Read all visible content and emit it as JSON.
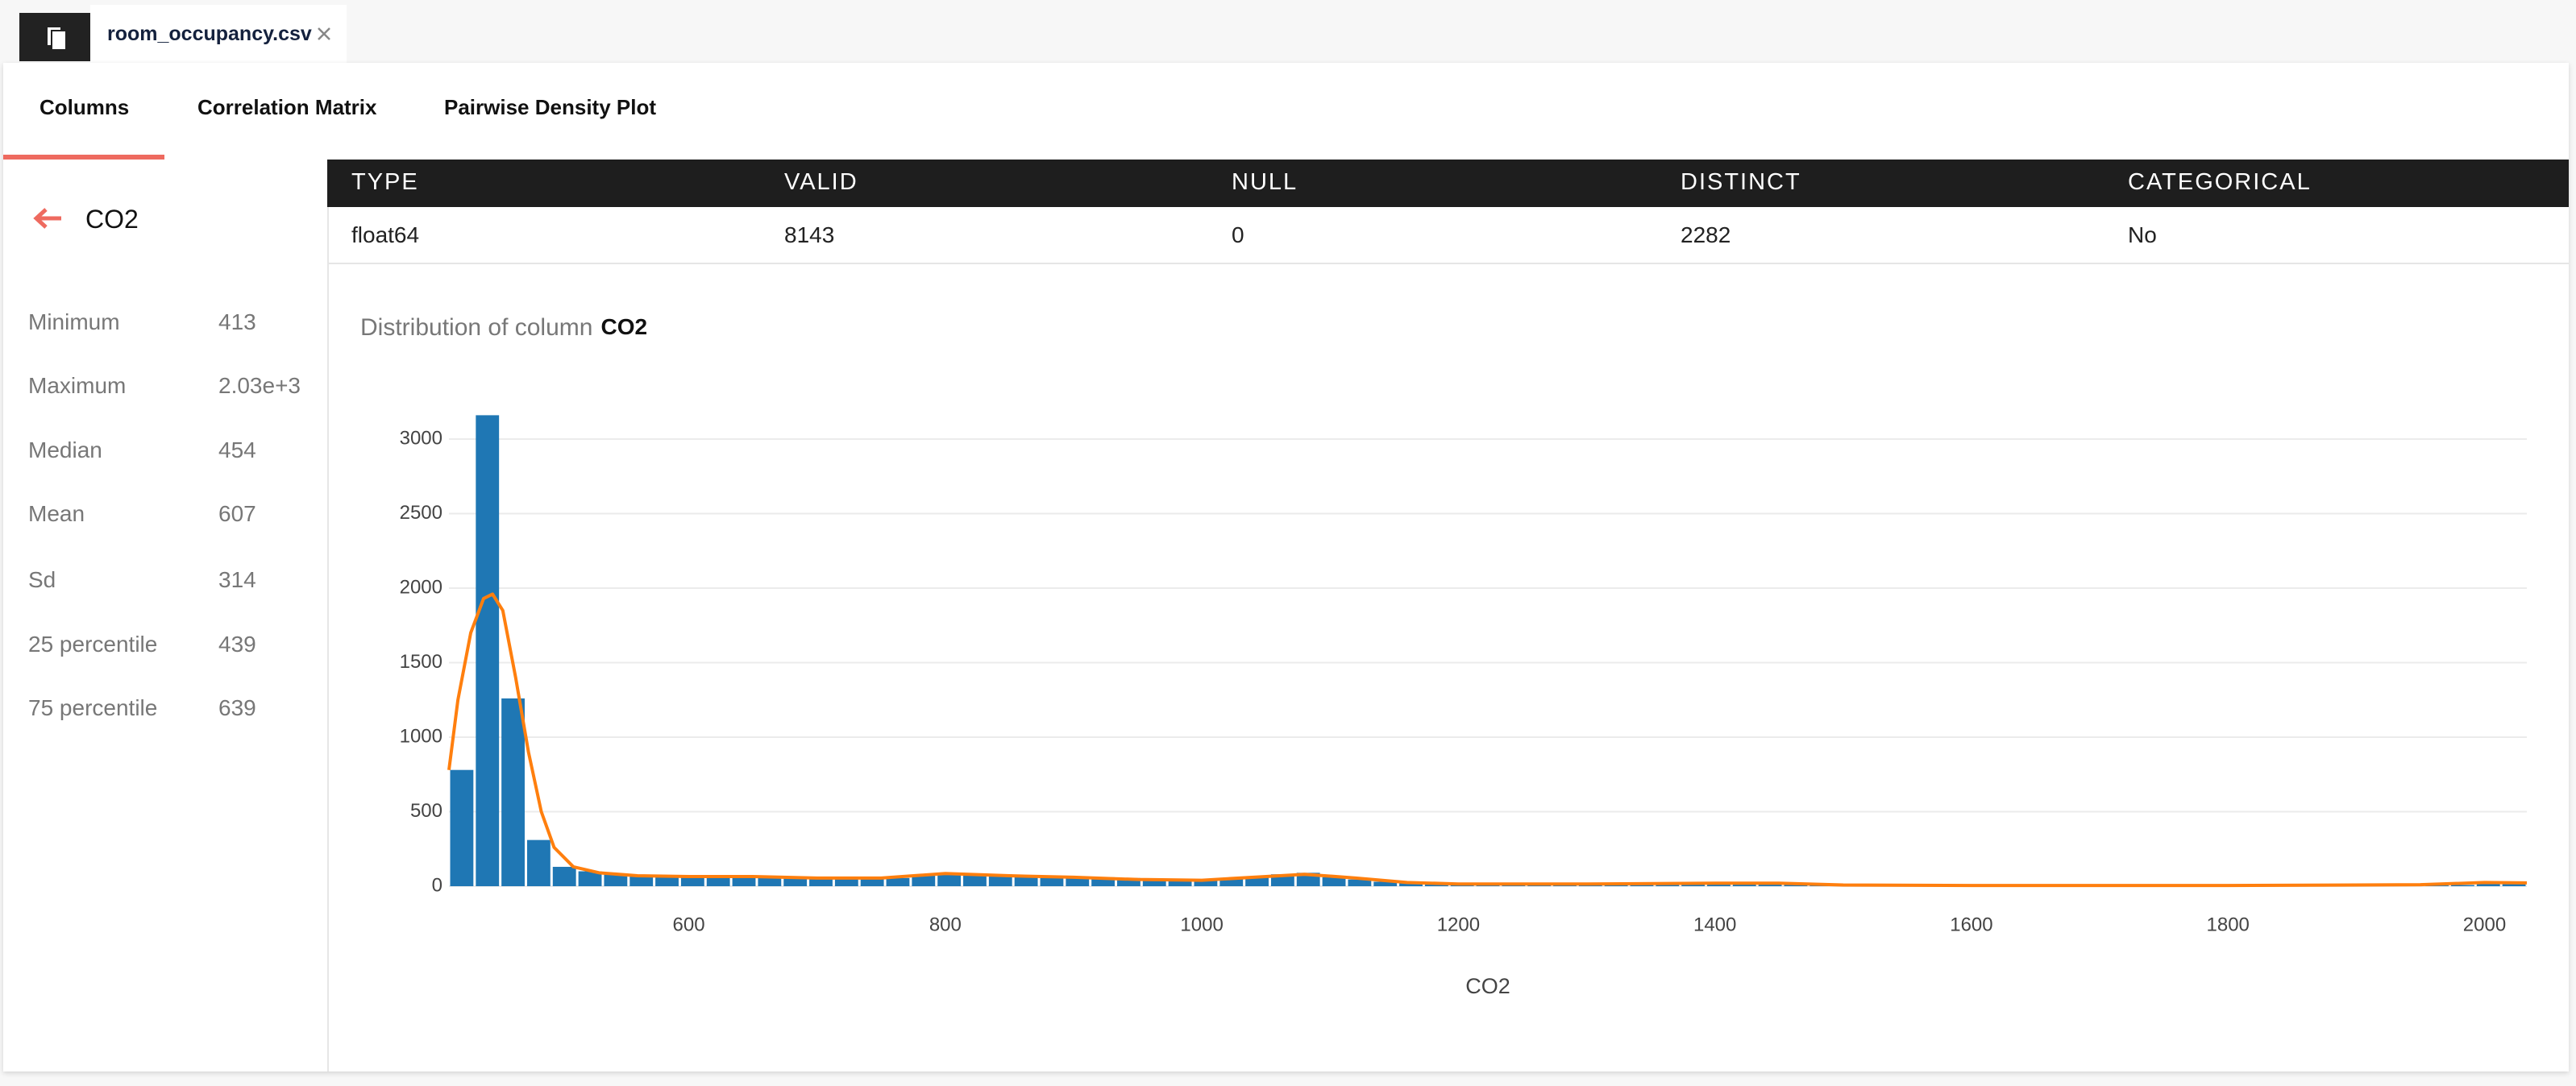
{
  "file_tab": {
    "name": "room_occupancy.csv"
  },
  "tabs": [
    "Columns",
    "Correlation Matrix",
    "Pairwise Density Plot"
  ],
  "column": {
    "name": "CO2",
    "stats": [
      {
        "label": "Minimum",
        "value": "413"
      },
      {
        "label": "Maximum",
        "value": "2.03e+3"
      },
      {
        "label": "Median",
        "value": "454"
      },
      {
        "label": "Mean",
        "value": "607"
      },
      {
        "label": "Sd",
        "value": "314"
      },
      {
        "label": "25 percentile",
        "value": "439"
      },
      {
        "label": "75 percentile",
        "value": "639"
      }
    ]
  },
  "table": {
    "headers": [
      "TYPE",
      "VALID",
      "NULL",
      "DISTINCT",
      "CATEGORICAL"
    ],
    "rows": [
      [
        "float64",
        "8143",
        "0",
        "2282",
        "No"
      ]
    ]
  },
  "chart_data": {
    "type": "histogram",
    "title": "Distribution of column",
    "title_emphasis": "CO2",
    "x_label": "CO2",
    "bins": [
      413,
      433,
      453,
      473,
      493,
      513,
      533,
      553,
      573,
      593,
      613,
      633,
      653,
      673,
      693,
      713,
      733,
      753,
      773,
      793,
      813,
      833,
      853,
      873,
      893,
      913,
      933,
      953,
      973,
      993,
      1013,
      1033,
      1053,
      1073,
      1093,
      1113,
      1133,
      1153,
      1173,
      1193,
      1213,
      1233,
      1253,
      1273,
      1293,
      1313,
      1333,
      1353,
      1373,
      1393,
      1413,
      1433,
      1453,
      1473,
      1493,
      1513,
      1533,
      1553,
      1573,
      1593,
      1613,
      1633,
      1653,
      1673,
      1693,
      1713,
      1733,
      1753,
      1773,
      1793,
      1813,
      1833,
      1853,
      1873,
      1893,
      1913,
      1933,
      1953,
      1973,
      1993,
      2013,
      2033
    ],
    "values": [
      780,
      3160,
      1260,
      310,
      130,
      100,
      85,
      75,
      70,
      65,
      65,
      65,
      70,
      65,
      60,
      55,
      50,
      55,
      75,
      90,
      85,
      80,
      75,
      70,
      65,
      60,
      55,
      50,
      45,
      45,
      55,
      65,
      80,
      90,
      60,
      45,
      30,
      20,
      15,
      15,
      15,
      12,
      12,
      12,
      10,
      10,
      12,
      12,
      15,
      18,
      20,
      22,
      20,
      15,
      8,
      5,
      5,
      4,
      5,
      6,
      5,
      5,
      4,
      5,
      5,
      6,
      5,
      4,
      5,
      5,
      5,
      4,
      5,
      6,
      5,
      5,
      4,
      5,
      8,
      15,
      25
    ],
    "color": "#1f77b4",
    "kde": {
      "x": [
        413,
        420,
        430,
        440,
        447,
        455,
        465,
        475,
        485,
        495,
        510,
        530,
        560,
        600,
        650,
        700,
        750,
        800,
        850,
        900,
        950,
        1000,
        1050,
        1080,
        1120,
        1160,
        1200,
        1300,
        1400,
        1450,
        1500,
        1600,
        1800,
        1950,
        2000,
        2033
      ],
      "values": [
        780,
        1250,
        1700,
        1930,
        1960,
        1850,
        1400,
        900,
        500,
        260,
        130,
        90,
        70,
        65,
        65,
        55,
        55,
        85,
        70,
        60,
        45,
        40,
        65,
        80,
        55,
        25,
        15,
        15,
        20,
        20,
        8,
        5,
        5,
        10,
        25,
        22
      ],
      "color": "#ff7f0e"
    },
    "xlim": [
      413,
      2033
    ],
    "ylim": [
      0,
      3200
    ],
    "xticks": [
      600,
      800,
      1000,
      1200,
      1400,
      1600,
      1800,
      2000
    ],
    "yticks": [
      0,
      500,
      1000,
      1500,
      2000,
      2500,
      3000
    ],
    "grid": true
  }
}
